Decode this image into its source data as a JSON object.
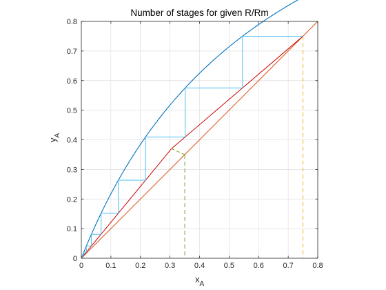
{
  "chart_data": {
    "type": "line",
    "title": "Number of stages for given R/Rm",
    "xlabel": {
      "main": "x",
      "sub": "A"
    },
    "ylabel": {
      "main": "y",
      "sub": "A"
    },
    "xlim": [
      0,
      0.8
    ],
    "ylim": [
      0,
      0.8
    ],
    "x_ticks": [
      "0",
      "0.1",
      "0.2",
      "0.3",
      "0.4",
      "0.5",
      "0.6",
      "0.7",
      "0.8"
    ],
    "y_ticks": [
      "0",
      "0.1",
      "0.2",
      "0.3",
      "0.4",
      "0.5",
      "0.6",
      "0.7",
      "0.8"
    ],
    "grid": true,
    "colors": {
      "equilibrium": "#0072bd",
      "diagonal": "#d95319",
      "operating": "#cc0000",
      "stages": "#4dbeee",
      "feed": "#77ac30",
      "distillate": "#edb120"
    },
    "relative_volatility": 2.5,
    "series": [
      {
        "key": "equilibrium",
        "x": [
          0,
          0.8
        ]
      },
      {
        "key": "diagonal",
        "x": [
          0,
          0.8
        ],
        "y": [
          0,
          0.8
        ]
      },
      {
        "key": "rectifying",
        "x": [
          0.305,
          0.75
        ],
        "y": [
          0.37,
          0.75
        ]
      },
      {
        "key": "stripping",
        "x": [
          0,
          0.305
        ],
        "y": [
          0,
          0.37
        ]
      },
      {
        "key": "feed_line",
        "x": [
          0.305,
          0.35
        ],
        "y": [
          0.37,
          0.35
        ]
      },
      {
        "key": "feed_drop",
        "x": [
          0.35,
          0.35
        ],
        "y": [
          0.35,
          0
        ]
      },
      {
        "key": "distillate_drop",
        "x": [
          0.75,
          0.75
        ],
        "y": [
          0.75,
          0
        ]
      },
      {
        "key": "stages",
        "x_start": 0.75
      }
    ]
  }
}
